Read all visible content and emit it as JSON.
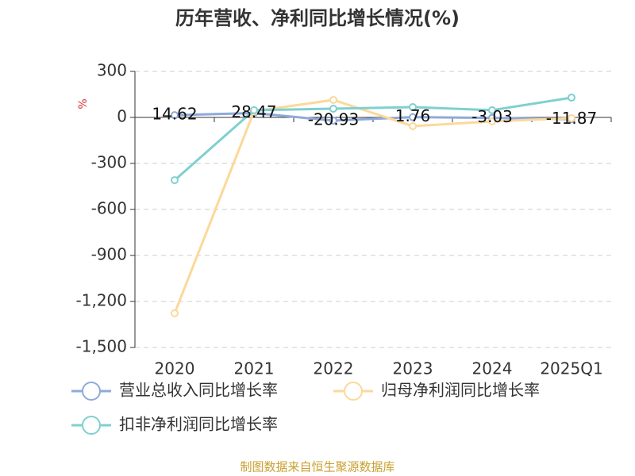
{
  "chart_data": {
    "type": "line",
    "title": "历年营收、净利同比增长情况(%)",
    "y_label": "%",
    "categories": [
      "2020",
      "2021",
      "2022",
      "2023",
      "2024",
      "2025Q1"
    ],
    "series": [
      {
        "name": "营业总收入同比增长率",
        "color": "#8eaadb",
        "values": [
          14.62,
          28.47,
          -20.93,
          1.76,
          -3.03,
          -11.87
        ]
      },
      {
        "name": "归母净利润同比增长率",
        "color": "#fcd89a",
        "values": [
          -1277,
          40,
          114,
          -57,
          -26,
          -5
        ]
      },
      {
        "name": "扣非净利润同比增长率",
        "color": "#7fd0d0",
        "values": [
          -409,
          47,
          57,
          67,
          47,
          129
        ]
      }
    ],
    "ylim": [
      -1500,
      300
    ],
    "yticks": [
      {
        "value": -1500,
        "label": "-1,500"
      },
      {
        "value": -1200,
        "label": "-1,200"
      },
      -900,
      -600,
      -300,
      0,
      300
    ],
    "grid": true,
    "source": "制图数据来自恒生聚源数据库"
  }
}
